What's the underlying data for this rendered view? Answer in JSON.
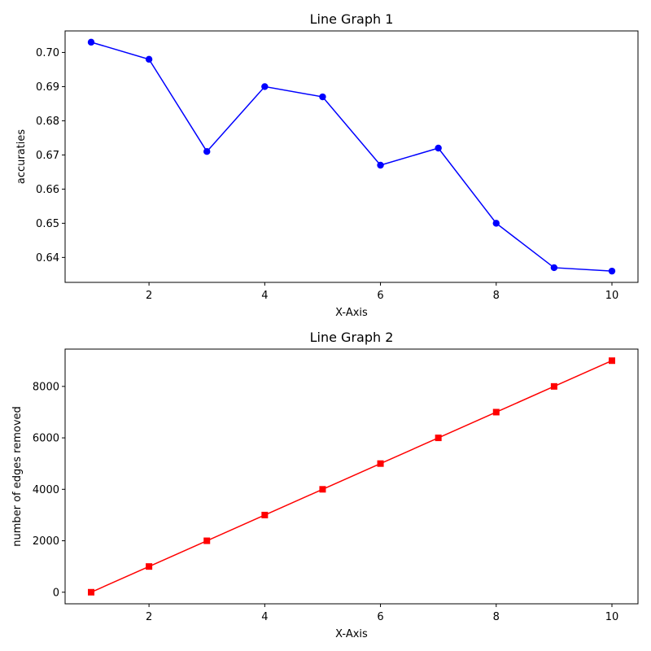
{
  "chart_data": [
    {
      "type": "line",
      "title": "Line Graph 1",
      "xlabel": "X-Axis",
      "ylabel": "accuraties",
      "xlim": [
        0.55,
        10.45
      ],
      "ylim": [
        0.6327,
        0.7063
      ],
      "xticks": [
        2,
        4,
        6,
        8,
        10
      ],
      "xtick_labels": [
        "2",
        "4",
        "6",
        "8",
        "10"
      ],
      "yticks": [
        0.64,
        0.65,
        0.66,
        0.67,
        0.68,
        0.69,
        0.7
      ],
      "ytick_labels": [
        "0.64",
        "0.65",
        "0.66",
        "0.67",
        "0.68",
        "0.69",
        "0.70"
      ],
      "grid": false,
      "series": [
        {
          "x": [
            1,
            2,
            3,
            4,
            5,
            6,
            7,
            8,
            9,
            10
          ],
          "y": [
            0.703,
            0.698,
            0.671,
            0.69,
            0.687,
            0.667,
            0.672,
            0.65,
            0.637,
            0.636
          ],
          "color": "#0000ff",
          "marker": "circle"
        }
      ]
    },
    {
      "type": "line",
      "title": "Line Graph 2",
      "xlabel": "X-Axis",
      "ylabel": "number of edges removed",
      "xlim": [
        0.55,
        10.45
      ],
      "ylim": [
        -450,
        9450
      ],
      "xticks": [
        2,
        4,
        6,
        8,
        10
      ],
      "xtick_labels": [
        "2",
        "4",
        "6",
        "8",
        "10"
      ],
      "yticks": [
        0,
        2000,
        4000,
        6000,
        8000
      ],
      "ytick_labels": [
        "0",
        "2000",
        "4000",
        "6000",
        "8000"
      ],
      "grid": false,
      "series": [
        {
          "x": [
            1,
            2,
            3,
            4,
            5,
            6,
            7,
            8,
            9,
            10
          ],
          "y": [
            0,
            1000,
            2000,
            3000,
            4000,
            5000,
            6000,
            7000,
            8000,
            9000
          ],
          "color": "#ff0000",
          "marker": "square"
        }
      ]
    }
  ]
}
